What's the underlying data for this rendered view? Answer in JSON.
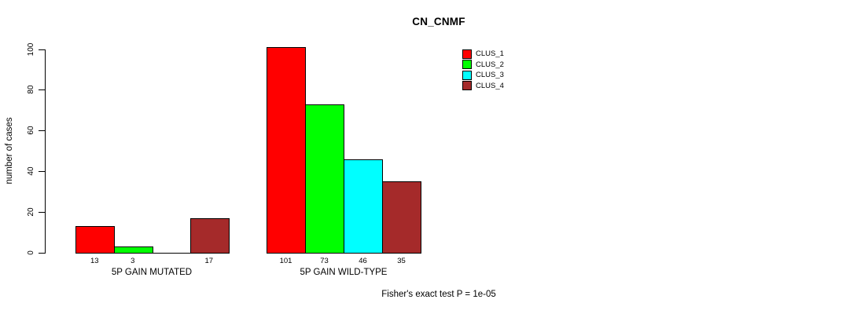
{
  "chart_data": {
    "type": "bar",
    "title": "CN_CNMF",
    "xlabel": "",
    "ylabel": "number of cases",
    "ylim": [
      0,
      105
    ],
    "yticks": [
      0,
      20,
      40,
      60,
      80,
      100
    ],
    "grid": false,
    "legend_position": "top-right-inside",
    "categories": [
      "5P GAIN MUTATED",
      "5P GAIN WILD-TYPE"
    ],
    "series": [
      {
        "name": "CLUS_1",
        "color": "#ff0000",
        "values": [
          13,
          101
        ]
      },
      {
        "name": "CLUS_2",
        "color": "#00ff00",
        "values": [
          3,
          73
        ]
      },
      {
        "name": "CLUS_3",
        "color": "#00ffff",
        "values": [
          0,
          46
        ]
      },
      {
        "name": "CLUS_4",
        "color": "#a52a2a",
        "values": [
          17,
          35
        ]
      }
    ],
    "bar_value_labels": [
      [
        "13",
        "3",
        "",
        "17"
      ],
      [
        "101",
        "73",
        "46",
        "35"
      ]
    ],
    "annotation": "Fisher's exact test P = 1e-05"
  }
}
